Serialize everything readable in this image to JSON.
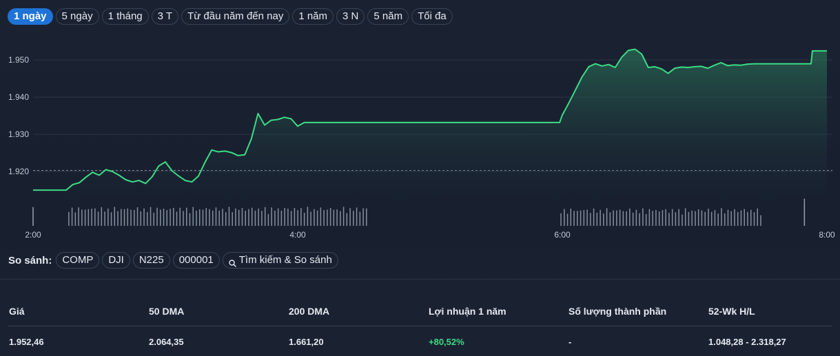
{
  "ranges": [
    {
      "label": "1 ngày",
      "active": true
    },
    {
      "label": "5 ngày",
      "active": false
    },
    {
      "label": "1 tháng",
      "active": false
    },
    {
      "label": "3 T",
      "active": false
    },
    {
      "label": "Từ đầu năm đến nay",
      "active": false
    },
    {
      "label": "1 năm",
      "active": false
    },
    {
      "label": "3 N",
      "active": false
    },
    {
      "label": "5 năm",
      "active": false
    },
    {
      "label": "Tối đa",
      "active": false
    }
  ],
  "colors": {
    "line": "#3ddc84",
    "volume": "#9aa3b2",
    "grid": "#2c3546",
    "reference": "#8a93a3",
    "accent": "#1f73d6"
  },
  "chart_data": {
    "type": "line",
    "x_ticks": [
      "2:00",
      "4:00",
      "6:00",
      "8:00"
    ],
    "x_range": [
      2,
      8
    ],
    "y_ticks": [
      "1.920",
      "1.930",
      "1.940",
      "1.950"
    ],
    "y_tick_values": [
      1920,
      1930,
      1940,
      1950
    ],
    "y_range": [
      1911.5,
      1958
    ],
    "reference_line": 1920.3,
    "grid": true,
    "series": [
      {
        "x": [
          2.0,
          2.25,
          2.3,
          2.35,
          2.4,
          2.45,
          2.5,
          2.55,
          2.6,
          2.65,
          2.7,
          2.75,
          2.8,
          2.85,
          2.9,
          2.95,
          3.0,
          3.05,
          3.1,
          3.15,
          3.2,
          3.25,
          3.3,
          3.35,
          3.4,
          3.45,
          3.5,
          3.55,
          3.6,
          3.65,
          3.7,
          3.75,
          3.8,
          3.85,
          3.9,
          3.95,
          4.0,
          4.05,
          4.1,
          4.15,
          4.2,
          4.25,
          4.3,
          4.35,
          4.4,
          4.45,
          4.5,
          4.55,
          4.6,
          4.65,
          4.7,
          4.75,
          4.8,
          5.98,
          6.0,
          6.05,
          6.1,
          6.15,
          6.2,
          6.25,
          6.3,
          6.35,
          6.4,
          6.45,
          6.5,
          6.55,
          6.6,
          6.65,
          6.7,
          6.75,
          6.8,
          6.85,
          6.9,
          6.95,
          7.0,
          7.05,
          7.1,
          7.15,
          7.2,
          7.25,
          7.3,
          7.35,
          7.4,
          7.45,
          7.5,
          7.55,
          7.6,
          7.65,
          7.7,
          7.75,
          7.8,
          7.85,
          7.88,
          7.89,
          8.0
        ],
        "y": [
          1915,
          1915,
          1916.5,
          1917,
          1918.5,
          1919.8,
          1919,
          1920.5,
          1920,
          1919,
          1917.8,
          1917.2,
          1917.6,
          1916.8,
          1918.6,
          1921.5,
          1922.6,
          1920.2,
          1918.8,
          1917.6,
          1917.2,
          1918.8,
          1922.5,
          1925.8,
          1925.3,
          1925.5,
          1925.1,
          1924.3,
          1924.5,
          1928.8,
          1935.6,
          1932.5,
          1933.8,
          1934.0,
          1934.6,
          1934.2,
          1932.2,
          1933.2,
          1933.2,
          1933.2,
          1933.2,
          1933.2,
          1933.2,
          1933.2,
          1933.2,
          1933.2,
          1933.2,
          1933.2,
          1933.2,
          1933.2,
          1933.2,
          1933.2,
          1933.2,
          1933.2,
          1935.2,
          1938.5,
          1942.0,
          1945.5,
          1948.2,
          1949.0,
          1948.4,
          1948.8,
          1948.0,
          1950.8,
          1952.6,
          1952.9,
          1951.6,
          1948.0,
          1948.2,
          1947.6,
          1946.4,
          1947.8,
          1948.1,
          1948.0,
          1948.2,
          1948.3,
          1947.8,
          1948.6,
          1949.3,
          1948.5,
          1948.7,
          1948.6,
          1948.9,
          1949.0,
          1949.0,
          1949.0,
          1949.0,
          1949.0,
          1949.0,
          1949.0,
          1949.0,
          1949.0,
          1949.0,
          1952.46,
          1952.46
        ]
      }
    ],
    "volume": {
      "segments": [
        {
          "start": 2.27,
          "end": 4.52,
          "count": 92,
          "base": 0.62
        },
        {
          "start": 5.99,
          "end": 7.5,
          "count": 62,
          "base": 0.55
        }
      ],
      "spikes": [
        {
          "x": 2.0,
          "value": 1.0
        },
        {
          "x": 7.83,
          "value": 1.45
        }
      ]
    }
  },
  "compare": {
    "label": "So sánh:",
    "items": [
      "COMP",
      "DJI",
      "N225",
      "000001"
    ],
    "search_label": "Tìm kiếm & So sánh"
  },
  "stats": {
    "headers": [
      "Giá",
      "50 DMA",
      "200 DMA",
      "Lợi nhuận 1 năm",
      "Số lượng thành phần",
      "52-Wk H/L"
    ],
    "values": [
      "1.952,46",
      "2.064,35",
      "1.661,20",
      "+80,52%",
      "-",
      "1.048,28 - 2.318,27"
    ]
  }
}
